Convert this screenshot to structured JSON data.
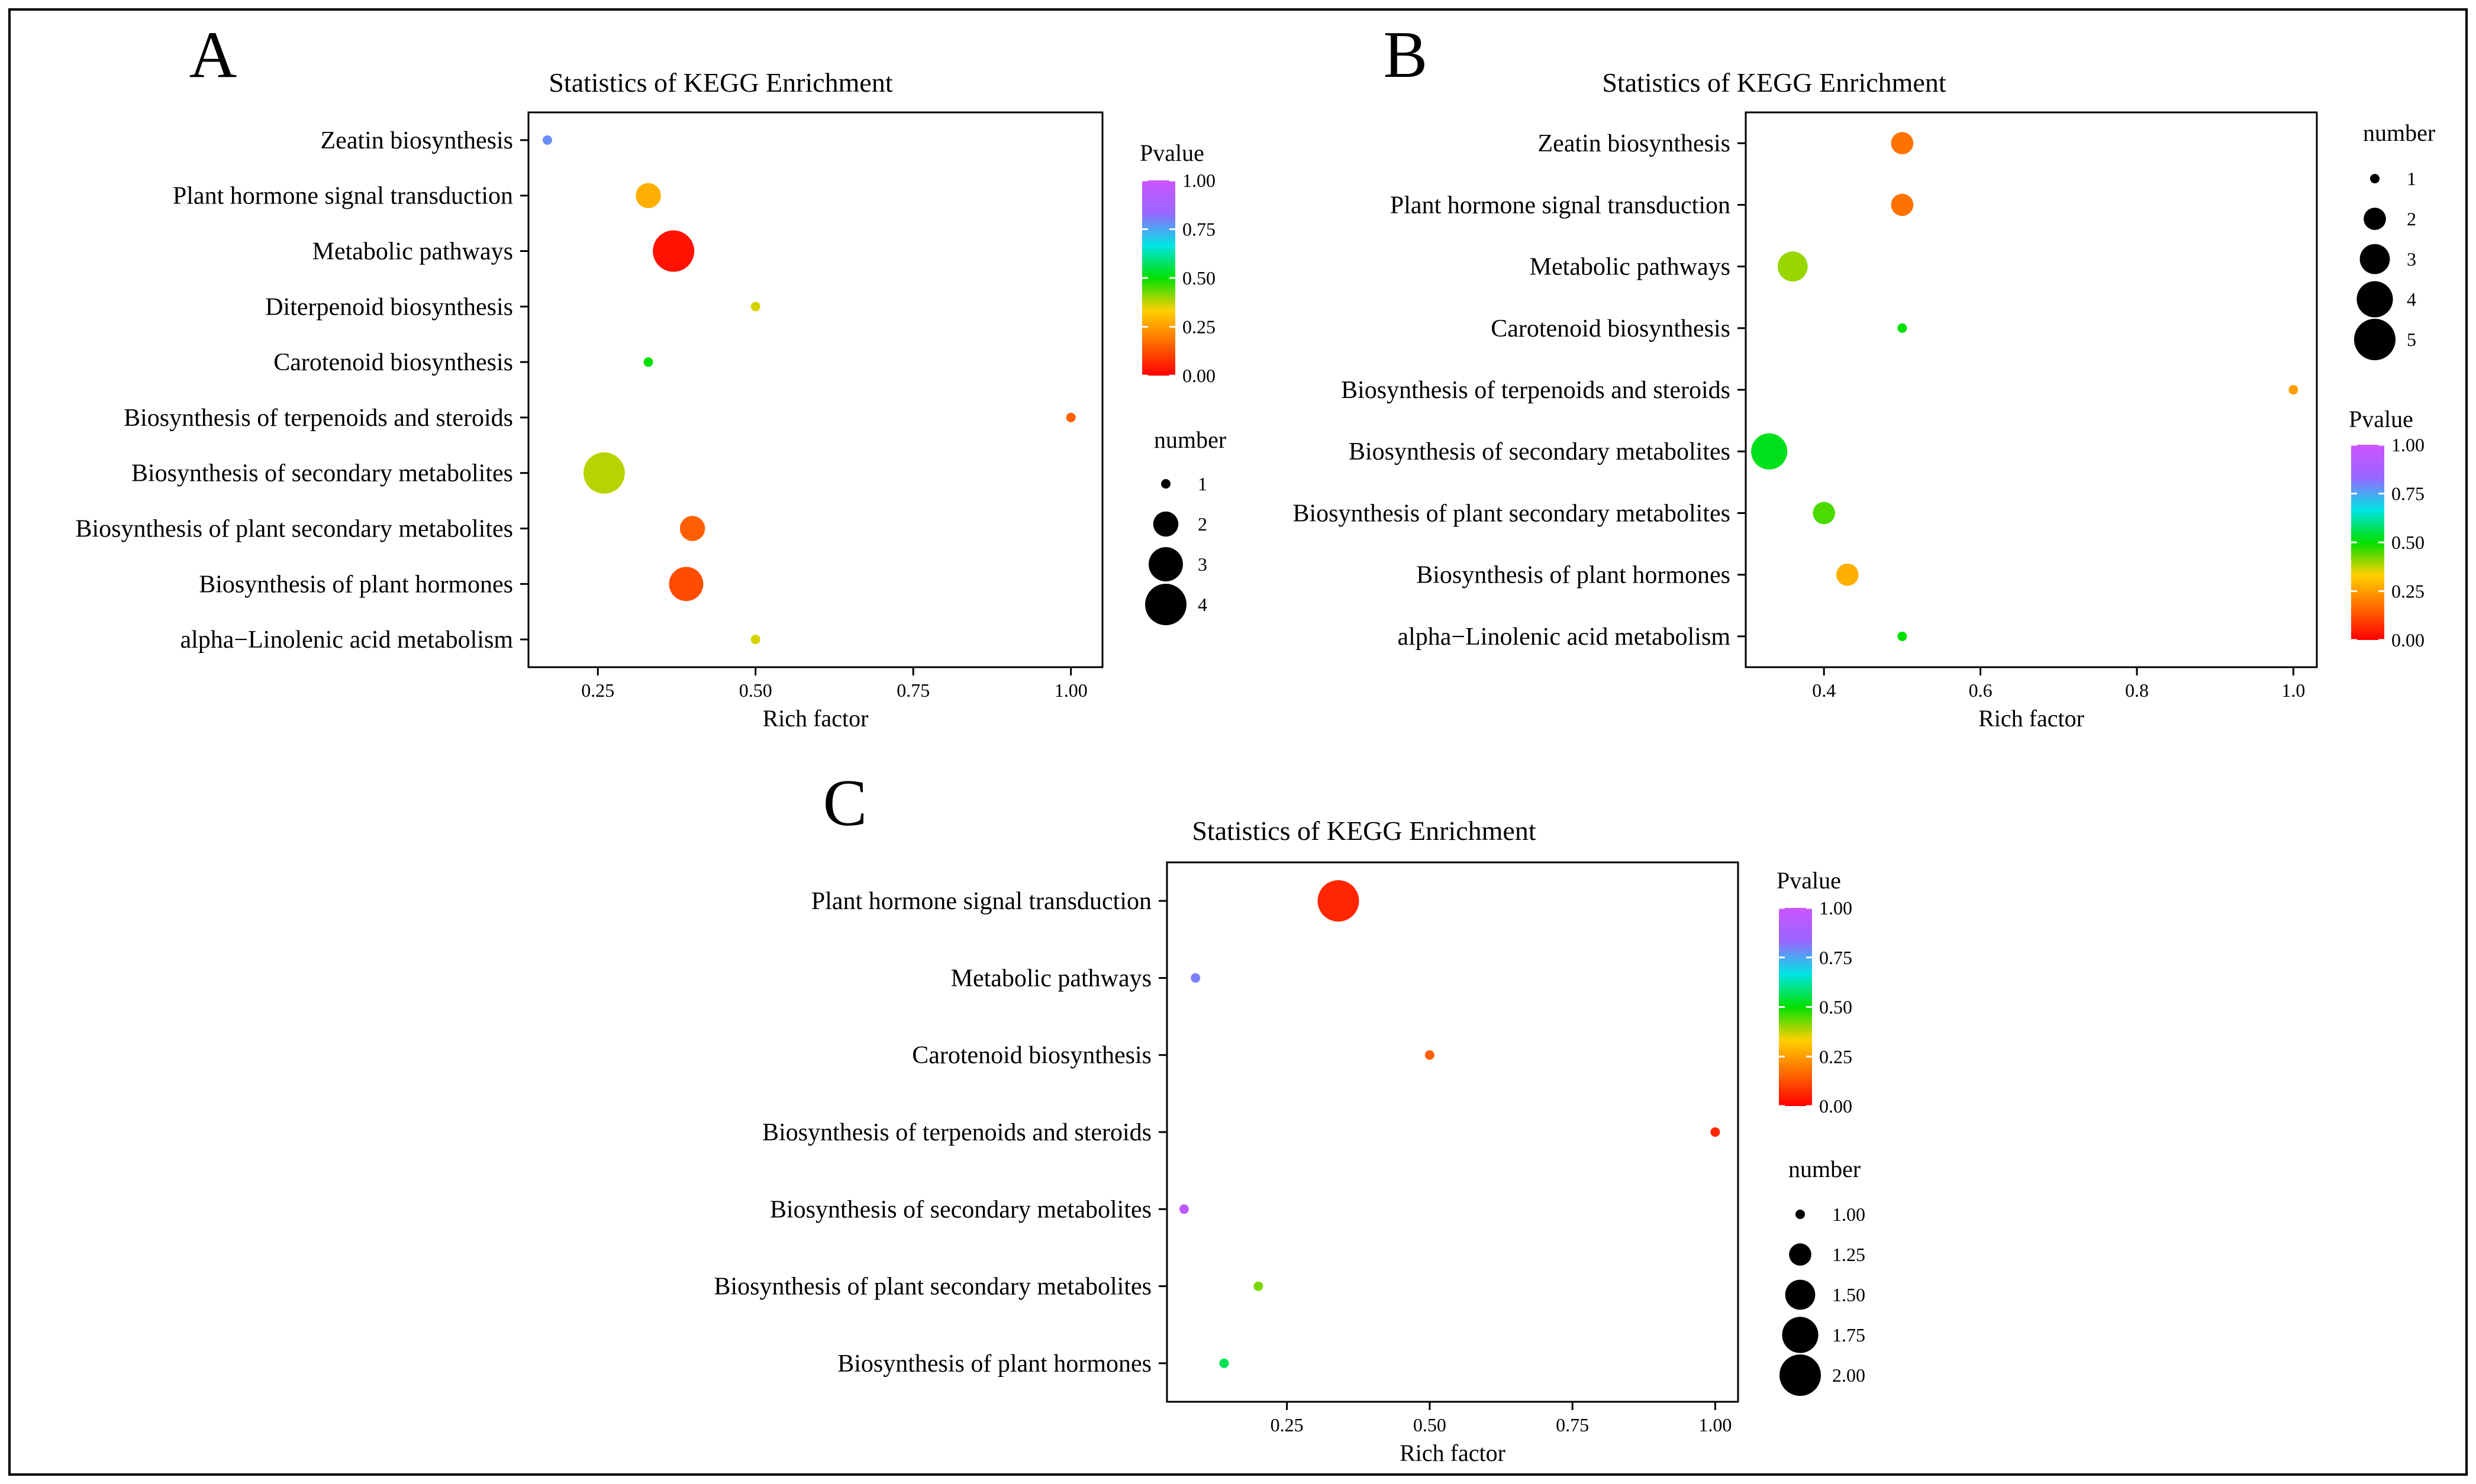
{
  "figure": {
    "border": true
  },
  "pvalue_colors": [
    "#ff0000",
    "#ff6a00",
    "#ffd000",
    "#00e000",
    "#00e5e5",
    "#9966ff",
    "#cc55ff"
  ],
  "chart_data": [
    {
      "id": "A",
      "type": "scatter",
      "panel_letter": "A",
      "title": "Statistics of KEGG Enrichment",
      "xlabel": "Rich factor",
      "ylabel": "",
      "xlim": [
        0.14,
        1.05
      ],
      "xticks": [
        0.25,
        0.5,
        0.75,
        1.0
      ],
      "xtick_labels": [
        "0.25",
        "0.50",
        "0.75",
        "1.00"
      ],
      "categories": [
        "Zeatin biosynthesis",
        "Plant hormone signal transduction",
        "Metabolic pathways",
        "Diterpenoid biosynthesis",
        "Carotenoid biosynthesis",
        "Biosynthesis of terpenoids and steroids",
        "Biosynthesis of secondary metabolites",
        "Biosynthesis of plant secondary metabolites",
        "Biosynthesis of plant hormones",
        "alpha−Linolenic acid metabolism"
      ],
      "points": [
        {
          "pathway": "Zeatin biosynthesis",
          "rich_factor": 0.17,
          "number": 1,
          "pvalue": 0.78
        },
        {
          "pathway": "Plant hormone signal transduction",
          "rich_factor": 0.33,
          "number": 2,
          "pvalue": 0.28
        },
        {
          "pathway": "Metabolic pathways",
          "rich_factor": 0.37,
          "number": 4,
          "pvalue": 0.03
        },
        {
          "pathway": "Diterpenoid biosynthesis",
          "rich_factor": 0.5,
          "number": 1,
          "pvalue": 0.36
        },
        {
          "pathway": "Carotenoid biosynthesis",
          "rich_factor": 0.33,
          "number": 1,
          "pvalue": 0.5
        },
        {
          "pathway": "Biosynthesis of terpenoids and steroids",
          "rich_factor": 1.0,
          "number": 1,
          "pvalue": 0.15
        },
        {
          "pathway": "Biosynthesis of secondary metabolites",
          "rich_factor": 0.26,
          "number": 4,
          "pvalue": 0.38
        },
        {
          "pathway": "Biosynthesis of plant secondary metabolites",
          "rich_factor": 0.4,
          "number": 2,
          "pvalue": 0.15
        },
        {
          "pathway": "Biosynthesis of plant hormones",
          "rich_factor": 0.39,
          "number": 3,
          "pvalue": 0.12
        },
        {
          "pathway": "alpha−Linolenic acid metabolism",
          "rich_factor": 0.5,
          "number": 1,
          "pvalue": 0.36
        }
      ],
      "color_legend": {
        "title": "Pvalue",
        "range": [
          0.0,
          1.0
        ],
        "ticks": [
          "0.00",
          "0.25",
          "0.50",
          "0.75",
          "1.00"
        ]
      },
      "size_legend": {
        "title": "number",
        "values": [
          1,
          2,
          3,
          4
        ],
        "labels": [
          "1",
          "2",
          "3",
          "4"
        ]
      },
      "legend_order": [
        "color",
        "size"
      ]
    },
    {
      "id": "B",
      "type": "scatter",
      "panel_letter": "B",
      "title": "Statistics of KEGG Enrichment",
      "xlabel": "Rich factor",
      "ylabel": "",
      "xlim": [
        0.3,
        1.03
      ],
      "xticks": [
        0.4,
        0.6,
        0.8,
        1.0
      ],
      "xtick_labels": [
        "0.4",
        "0.6",
        "0.8",
        "1.0"
      ],
      "categories": [
        "Zeatin biosynthesis",
        "Plant hormone signal transduction",
        "Metabolic pathways",
        "Carotenoid biosynthesis",
        "Biosynthesis of terpenoids and steroids",
        "Biosynthesis of secondary metabolites",
        "Biosynthesis of plant secondary metabolites",
        "Biosynthesis of plant hormones",
        "alpha−Linolenic acid metabolism"
      ],
      "points": [
        {
          "pathway": "Zeatin biosynthesis",
          "rich_factor": 0.5,
          "number": 2,
          "pvalue": 0.18
        },
        {
          "pathway": "Plant hormone signal transduction",
          "rich_factor": 0.5,
          "number": 2,
          "pvalue": 0.18
        },
        {
          "pathway": "Metabolic pathways",
          "rich_factor": 0.36,
          "number": 3,
          "pvalue": 0.4
        },
        {
          "pathway": "Carotenoid biosynthesis",
          "rich_factor": 0.5,
          "number": 1,
          "pvalue": 0.5
        },
        {
          "pathway": "Biosynthesis of terpenoids and steroids",
          "rich_factor": 1.0,
          "number": 1,
          "pvalue": 0.25
        },
        {
          "pathway": "Biosynthesis of secondary metabolites",
          "rich_factor": 0.33,
          "number": 4,
          "pvalue": 0.52
        },
        {
          "pathway": "Biosynthesis of plant secondary metabolites",
          "rich_factor": 0.4,
          "number": 2,
          "pvalue": 0.45
        },
        {
          "pathway": "Biosynthesis of plant hormones",
          "rich_factor": 0.43,
          "number": 2,
          "pvalue": 0.28
        },
        {
          "pathway": "alpha−Linolenic acid metabolism",
          "rich_factor": 0.5,
          "number": 1,
          "pvalue": 0.5
        }
      ],
      "color_legend": {
        "title": "Pvalue",
        "range": [
          0.0,
          1.0
        ],
        "ticks": [
          "0.00",
          "0.25",
          "0.50",
          "0.75",
          "1.00"
        ]
      },
      "size_legend": {
        "title": "number",
        "values": [
          1,
          2,
          3,
          4,
          5
        ],
        "labels": [
          "1",
          "2",
          "3",
          "4",
          "5"
        ]
      },
      "legend_order": [
        "size",
        "color"
      ]
    },
    {
      "id": "C",
      "type": "scatter",
      "panel_letter": "C",
      "title": "Statistics of KEGG Enrichment",
      "xlabel": "Rich factor",
      "ylabel": "",
      "xlim": [
        0.04,
        1.04
      ],
      "xticks": [
        0.25,
        0.5,
        0.75,
        1.0
      ],
      "xtick_labels": [
        "0.25",
        "0.50",
        "0.75",
        "1.00"
      ],
      "categories": [
        "Plant hormone signal transduction",
        "Metabolic pathways",
        "Carotenoid biosynthesis",
        "Biosynthesis of terpenoids and steroids",
        "Biosynthesis of secondary metabolites",
        "Biosynthesis of plant secondary metabolites",
        "Biosynthesis of plant hormones"
      ],
      "points": [
        {
          "pathway": "Plant hormone signal transduction",
          "rich_factor": 0.34,
          "number": 2.0,
          "pvalue": 0.06
        },
        {
          "pathway": "Metabolic pathways",
          "rich_factor": 0.09,
          "number": 1.0,
          "pvalue": 0.8
        },
        {
          "pathway": "Carotenoid biosynthesis",
          "rich_factor": 0.5,
          "number": 1.0,
          "pvalue": 0.15
        },
        {
          "pathway": "Biosynthesis of terpenoids and steroids",
          "rich_factor": 1.0,
          "number": 1.0,
          "pvalue": 0.06
        },
        {
          "pathway": "Biosynthesis of secondary metabolites",
          "rich_factor": 0.07,
          "number": 1.0,
          "pvalue": 0.95
        },
        {
          "pathway": "Biosynthesis of plant secondary metabolites",
          "rich_factor": 0.2,
          "number": 1.0,
          "pvalue": 0.42
        },
        {
          "pathway": "Biosynthesis of plant hormones",
          "rich_factor": 0.14,
          "number": 1.0,
          "pvalue": 0.56
        }
      ],
      "color_legend": {
        "title": "Pvalue",
        "range": [
          0.0,
          1.0
        ],
        "ticks": [
          "0.00",
          "0.25",
          "0.50",
          "0.75",
          "1.00"
        ]
      },
      "size_legend": {
        "title": "number",
        "values": [
          1.0,
          1.25,
          1.5,
          1.75,
          2.0
        ],
        "labels": [
          "1.00",
          "1.25",
          "1.50",
          "1.75",
          "2.00"
        ]
      },
      "legend_order": [
        "color",
        "size"
      ]
    }
  ]
}
